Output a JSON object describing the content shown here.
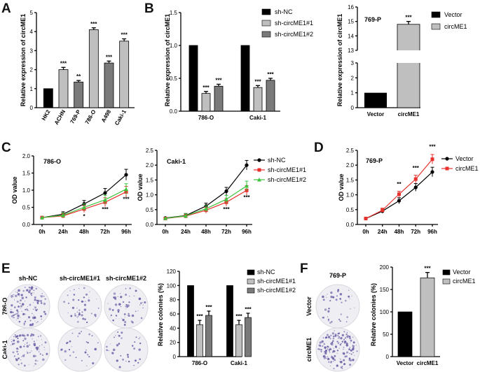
{
  "panel_labels": {
    "A": "A",
    "B": "B",
    "C": "C",
    "D": "D",
    "E": "E",
    "F": "F"
  },
  "colors": {
    "black": "#000000",
    "gray": "#bfbfbf",
    "darkgray": "#8c8c8c",
    "mid": "#7a7a7a",
    "red": "#e8312c",
    "green": "#3ec43e",
    "dish": "#efeef3",
    "colony": "#6a5fa6"
  },
  "chart_data": [
    {
      "id": "A",
      "type": "bar",
      "ylabel": "Relative expression of circME1",
      "categories": [
        "HK2",
        "ACHN",
        "769-P",
        "786-O",
        "A498",
        "Caki-1"
      ],
      "values": [
        1.0,
        2.0,
        1.35,
        4.1,
        2.35,
        3.5
      ],
      "errors": [
        0,
        0.12,
        0.08,
        0.1,
        0.1,
        0.12
      ],
      "sig": [
        "",
        "***",
        "**",
        "***",
        "***",
        "***"
      ],
      "yticks": [
        "0",
        "1",
        "2",
        "3",
        "4",
        "5"
      ],
      "ylim": [
        0,
        5
      ]
    },
    {
      "id": "B1",
      "type": "bar",
      "ylabel": "Relative expression of circME1",
      "groups": [
        "786-O",
        "Caki-1"
      ],
      "series": [
        {
          "name": "sh-NC",
          "values": [
            1.0,
            1.0
          ],
          "errors": [
            0,
            0
          ]
        },
        {
          "name": "sh-circME1#1",
          "values": [
            0.27,
            0.36
          ],
          "errors": [
            0.03,
            0.03
          ]
        },
        {
          "name": "sh-circME1#2",
          "values": [
            0.38,
            0.47
          ],
          "errors": [
            0.03,
            0.03
          ]
        }
      ],
      "sig": [
        [
          "",
          "***",
          "***"
        ],
        [
          "",
          "***",
          "***"
        ]
      ],
      "yticks": [
        "0.0",
        "0.5",
        "1.0",
        "1.5"
      ],
      "ylim": [
        0,
        1.5
      ]
    },
    {
      "id": "B2",
      "type": "bar",
      "title": "769-P",
      "ylabel": "Relative expression of circME1",
      "categories": [
        "Vector",
        "circME1"
      ],
      "values": [
        1.0,
        14.8
      ],
      "errors": [
        0,
        0.2
      ],
      "sig": [
        "",
        "***"
      ],
      "yticks_lower": [
        "0",
        "1",
        "2",
        "3"
      ],
      "yticks_upper": [
        "13",
        "14",
        "15",
        "16"
      ],
      "legend": [
        "Vector",
        "circME1"
      ]
    },
    {
      "id": "C1",
      "type": "line",
      "title": "786-O",
      "ylabel": "OD value",
      "x": [
        "0h",
        "24h",
        "48h",
        "72h",
        "96h"
      ],
      "series": [
        {
          "name": "sh-NC",
          "values": [
            0.2,
            0.3,
            0.6,
            0.92,
            1.45
          ]
        },
        {
          "name": "sh-circME1#1",
          "values": [
            0.2,
            0.25,
            0.45,
            0.65,
            0.95
          ]
        },
        {
          "name": "sh-circME1#2",
          "values": [
            0.2,
            0.27,
            0.5,
            0.72,
            1.03
          ]
        }
      ],
      "sig": [
        "",
        "",
        "*",
        "***",
        "***"
      ],
      "yticks": [
        "0.0",
        "0.5",
        "1.0",
        "1.5",
        "2.0"
      ],
      "ylim": [
        0,
        2.0
      ]
    },
    {
      "id": "C2",
      "type": "line",
      "title": "Caki-1",
      "ylabel": "OD value",
      "x": [
        "0h",
        "24h",
        "48h",
        "72h",
        "96h"
      ],
      "series": [
        {
          "name": "sh-NC",
          "values": [
            0.22,
            0.3,
            0.62,
            1.12,
            2.0
          ]
        },
        {
          "name": "sh-circME1#1",
          "values": [
            0.2,
            0.28,
            0.48,
            0.75,
            1.15
          ]
        },
        {
          "name": "sh-circME1#2",
          "values": [
            0.21,
            0.29,
            0.53,
            0.85,
            1.3
          ]
        }
      ],
      "sig": [
        "",
        "",
        "",
        "***",
        "***"
      ],
      "yticks": [
        "0.0",
        "0.5",
        "1.0",
        "1.5",
        "2.0",
        "2.5"
      ],
      "ylim": [
        0,
        2.5
      ],
      "legend": [
        "sh-NC",
        "sh-circME1#1",
        "sh-circME1#2"
      ]
    },
    {
      "id": "D",
      "type": "line",
      "title": "769-P",
      "ylabel": "OD value",
      "x": [
        "0h",
        "24h",
        "48h",
        "72h",
        "96h"
      ],
      "series": [
        {
          "name": "Vector",
          "values": [
            0.2,
            0.45,
            0.8,
            1.25,
            1.77
          ]
        },
        {
          "name": "circME1",
          "values": [
            0.2,
            0.48,
            1.02,
            1.53,
            2.2
          ]
        }
      ],
      "sig": [
        "",
        "",
        "**",
        "***",
        "***"
      ],
      "yticks": [
        "0.0",
        "0.5",
        "1.0",
        "1.5",
        "2.0",
        "2.5"
      ],
      "ylim": [
        0,
        2.5
      ],
      "legend": [
        "Vector",
        "circME1"
      ]
    },
    {
      "id": "E",
      "type": "bar",
      "ylabel": "Relative colonies (%)",
      "groups": [
        "786-O",
        "Caki-1"
      ],
      "series": [
        {
          "name": "sh-NC",
          "values": [
            100,
            100
          ]
        },
        {
          "name": "sh-circME1#1",
          "values": [
            45,
            45
          ]
        },
        {
          "name": "sh-circME1#2",
          "values": [
            58,
            55
          ]
        }
      ],
      "sig": [
        [
          "",
          "***",
          "***"
        ],
        [
          "",
          "***",
          "***"
        ]
      ],
      "yticks": [
        "0",
        "20",
        "40",
        "60",
        "80",
        "100",
        "120"
      ],
      "ylim": [
        0,
        120
      ]
    },
    {
      "id": "F",
      "type": "bar",
      "ylabel": "Relative colonies (%)",
      "categories": [
        "Vector",
        "circME1"
      ],
      "values": [
        100,
        176
      ],
      "errors": [
        0,
        12
      ],
      "sig": [
        "",
        "***"
      ],
      "yticks": [
        "0",
        "50",
        "100",
        "150",
        "200"
      ],
      "ylim": [
        0,
        200
      ],
      "legend": [
        "Vector",
        "circME1"
      ]
    }
  ],
  "colony": {
    "E": {
      "col_labels": [
        "sh-NC",
        "sh-circME1#1",
        "sh-circME1#2"
      ],
      "row_labels": [
        "786-O",
        "Caki-1"
      ]
    },
    "F": {
      "title": "769-P",
      "row_labels": [
        "Vector",
        "circME1"
      ]
    }
  }
}
